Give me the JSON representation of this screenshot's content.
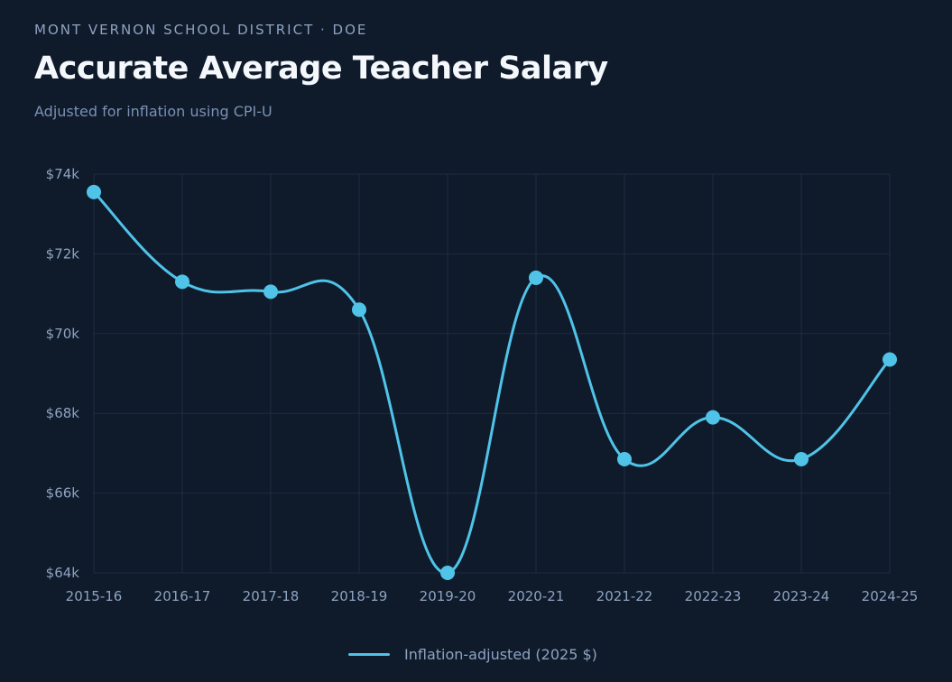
{
  "header": {
    "eyebrow": "MONT VERNON SCHOOL DISTRICT · DOE",
    "title": "Accurate Average Teacher Salary",
    "subtitle": "Adjusted for inflation using CPI-U"
  },
  "colors": {
    "background": "#0f1a2b",
    "series": "#4fc3e8",
    "grid": "#1f2d42",
    "tick_text": "#8ea3c0"
  },
  "chart_data": {
    "type": "line",
    "categories": [
      "2015-16",
      "2016-17",
      "2017-18",
      "2018-19",
      "2019-20",
      "2020-21",
      "2021-22",
      "2022-23",
      "2023-24",
      "2024-25"
    ],
    "series": [
      {
        "name": "Inflation-adjusted (2025 $)",
        "values": [
          73550,
          71300,
          71050,
          70600,
          64000,
          71400,
          66850,
          67900,
          66850,
          69350
        ]
      }
    ],
    "ylim": [
      64000,
      74000
    ],
    "yticks": [
      64000,
      66000,
      68000,
      70000,
      72000,
      74000
    ],
    "ytick_labels": [
      "$64k",
      "$66k",
      "$68k",
      "$70k",
      "$72k",
      "$74k"
    ],
    "grid": true,
    "smooth": true,
    "markers": true,
    "legend_position": "bottom-center"
  }
}
